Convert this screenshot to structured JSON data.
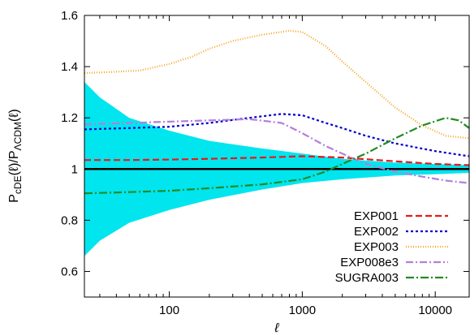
{
  "chart_data": {
    "type": "line",
    "x_scale": "log",
    "xlim": [
      23,
      18000
    ],
    "ylim": [
      0.5,
      1.6
    ],
    "xticks": [
      100,
      1000,
      10000
    ],
    "xtick_labels": [
      "100",
      "1000",
      "10000"
    ],
    "yticks": [
      0.6,
      0.8,
      1.0,
      1.2,
      1.4,
      1.6
    ],
    "ytick_labels": [
      "0.6",
      "0.8",
      "1",
      "1.2",
      "1.4",
      "1.6"
    ],
    "xlabel": "ℓ",
    "ylabel": {
      "main": "P",
      "sub1": "cDE",
      "mid": "(ℓ)/P",
      "sub2": "ΛCDM",
      "end": "(ℓ)"
    },
    "grid": false,
    "legend_position": "bottom-right",
    "reference_line": {
      "y": 1.0,
      "color": "#000000"
    },
    "error_band": {
      "color": "#00e5ee",
      "x": [
        23,
        30,
        50,
        100,
        200,
        500,
        1000,
        2000,
        5000,
        10000,
        18000
      ],
      "lower": [
        0.66,
        0.72,
        0.79,
        0.84,
        0.88,
        0.92,
        0.945,
        0.96,
        0.975,
        0.98,
        0.985
      ],
      "upper": [
        1.34,
        1.28,
        1.2,
        1.15,
        1.11,
        1.08,
        1.06,
        1.04,
        1.025,
        1.02,
        1.015
      ]
    },
    "series": [
      {
        "name": "EXP001",
        "color": "#e41a1c",
        "dash": "8,4",
        "x": [
          23,
          50,
          100,
          200,
          500,
          1000,
          2000,
          5000,
          10000,
          18000
        ],
        "y": [
          1.035,
          1.035,
          1.037,
          1.04,
          1.045,
          1.05,
          1.045,
          1.03,
          1.02,
          1.015
        ]
      },
      {
        "name": "EXP002",
        "color": "#0000cc",
        "dash": "3,3",
        "x": [
          23,
          50,
          100,
          200,
          400,
          700,
          1000,
          1500,
          2000,
          3000,
          5000,
          10000,
          18000
        ],
        "y": [
          1.155,
          1.16,
          1.165,
          1.18,
          1.2,
          1.215,
          1.21,
          1.18,
          1.16,
          1.13,
          1.1,
          1.07,
          1.05
        ]
      },
      {
        "name": "EXP003",
        "color": "#f5a623",
        "dash": "1,2",
        "x": [
          23,
          40,
          60,
          100,
          150,
          200,
          300,
          500,
          800,
          1000,
          1500,
          2000,
          3000,
          5000,
          8000,
          12000,
          18000
        ],
        "y": [
          1.375,
          1.38,
          1.385,
          1.41,
          1.44,
          1.47,
          1.5,
          1.525,
          1.54,
          1.535,
          1.48,
          1.42,
          1.34,
          1.24,
          1.17,
          1.13,
          1.12
        ]
      },
      {
        "name": "EXP008e3",
        "color": "#b57edc",
        "dash": "9,3,2,3",
        "x": [
          23,
          50,
          100,
          200,
          400,
          700,
          1000,
          1500,
          2000,
          3000,
          5000,
          8000,
          12000,
          18000
        ],
        "y": [
          1.175,
          1.18,
          1.185,
          1.19,
          1.195,
          1.18,
          1.14,
          1.09,
          1.06,
          1.02,
          0.99,
          0.97,
          0.955,
          0.945
        ]
      },
      {
        "name": "SUGRA003",
        "color": "#228b22",
        "dash": "10,3,2,3",
        "x": [
          23,
          50,
          100,
          200,
          500,
          1000,
          1500,
          2000,
          3000,
          5000,
          8000,
          12000,
          15000,
          18000
        ],
        "y": [
          0.905,
          0.91,
          0.915,
          0.925,
          0.94,
          0.96,
          0.99,
          1.02,
          1.06,
          1.12,
          1.17,
          1.2,
          1.19,
          1.16
        ]
      }
    ]
  }
}
